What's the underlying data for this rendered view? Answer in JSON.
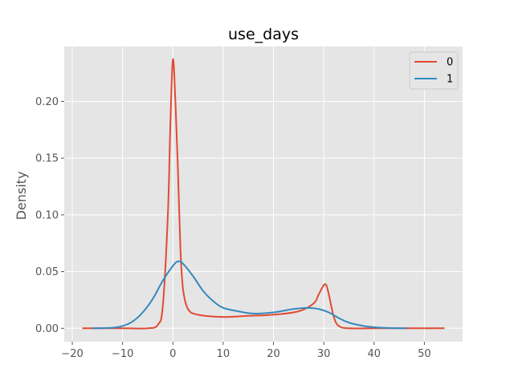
{
  "chart_data": {
    "type": "line",
    "title": "use_days",
    "xlabel": "",
    "ylabel": "Density",
    "xlim": [
      -21.6,
      57.6
    ],
    "ylim": [
      -0.0118,
      0.2484
    ],
    "xticks": [
      -20,
      -10,
      0,
      10,
      20,
      30,
      40,
      50
    ],
    "yticks": [
      0.0,
      0.05,
      0.1,
      0.15,
      0.2
    ],
    "xtick_labels": [
      "−20",
      "−10",
      "0",
      "10",
      "20",
      "30",
      "40",
      "50"
    ],
    "ytick_labels": [
      "0.00",
      "0.05",
      "0.10",
      "0.15",
      "0.20"
    ],
    "grid": true,
    "legend_position": "top-right",
    "series": [
      {
        "name": "0",
        "color": "#e24a33",
        "x": [
          -18,
          -10,
          -5,
          -3,
          -2,
          -1,
          -0.5,
          0,
          0.5,
          1,
          1.5,
          2,
          3,
          5,
          10,
          15,
          20,
          25,
          28,
          29,
          30,
          30.5,
          31,
          32,
          33,
          35,
          40,
          54
        ],
        "y": [
          0,
          0,
          0,
          0.003,
          0.02,
          0.1,
          0.18,
          0.237,
          0.2,
          0.14,
          0.07,
          0.035,
          0.017,
          0.012,
          0.01,
          0.011,
          0.012,
          0.015,
          0.022,
          0.03,
          0.038,
          0.038,
          0.03,
          0.01,
          0.002,
          0,
          0,
          0
        ]
      },
      {
        "name": "1",
        "color": "#348abd",
        "x": [
          -16,
          -12,
          -10,
          -8,
          -6,
          -4,
          -2,
          0,
          1,
          2,
          4,
          6,
          8,
          10,
          13,
          16,
          20,
          24,
          27,
          29,
          31,
          33,
          35,
          38,
          40,
          42,
          46.5
        ],
        "y": [
          0,
          0.0005,
          0.002,
          0.006,
          0.014,
          0.026,
          0.042,
          0.055,
          0.059,
          0.057,
          0.046,
          0.033,
          0.024,
          0.018,
          0.015,
          0.013,
          0.014,
          0.017,
          0.018,
          0.017,
          0.014,
          0.009,
          0.005,
          0.002,
          0.001,
          0.0004,
          0
        ]
      }
    ]
  }
}
